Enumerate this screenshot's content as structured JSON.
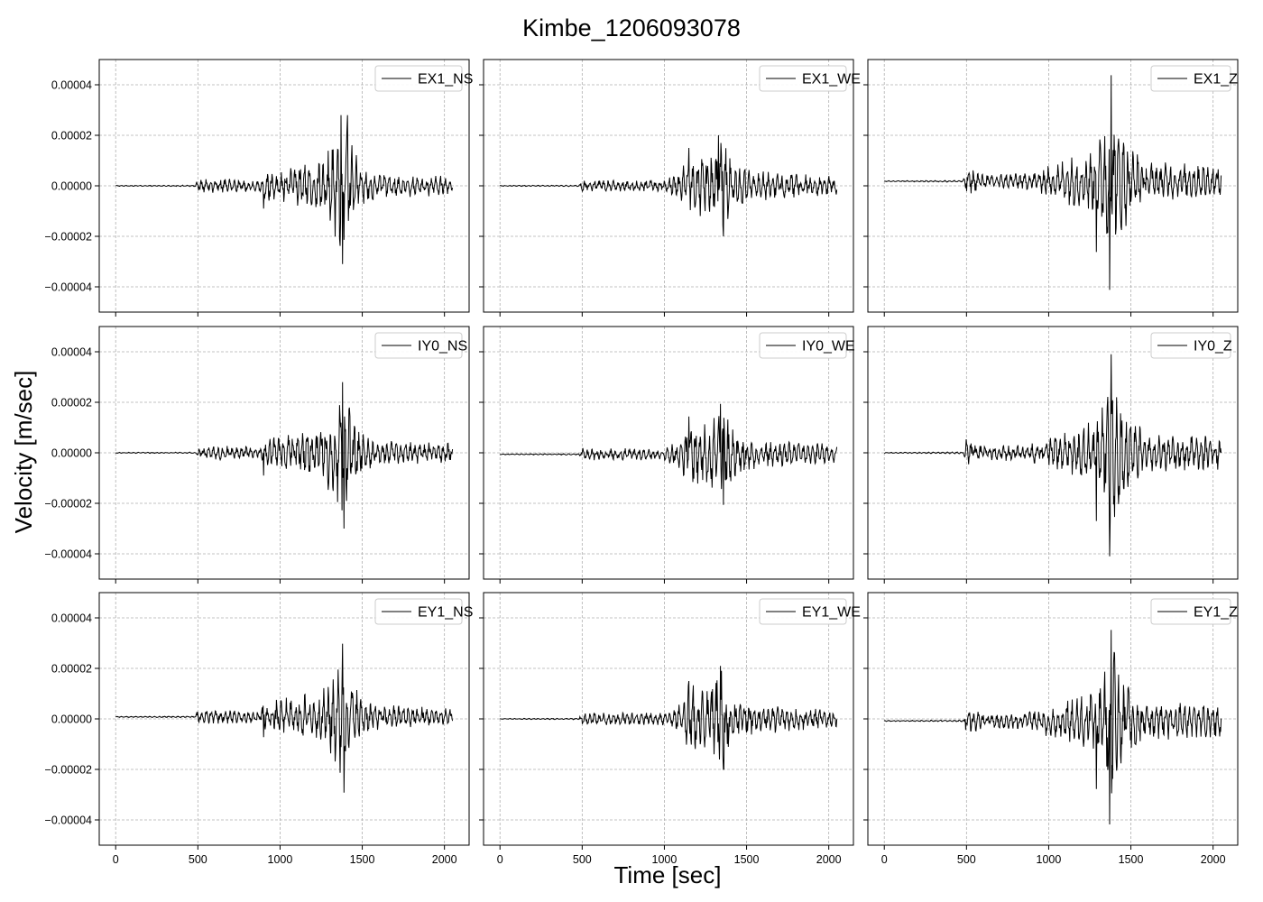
{
  "figure": {
    "title": "Kimbe_1206093078",
    "xlabel": "Time [sec]",
    "ylabel": "Velocity [m/sec]"
  },
  "chart_data": {
    "type": "line",
    "layout": {
      "rows": 3,
      "cols": 3,
      "sharex": true,
      "sharey": true
    },
    "xlim": [
      -100,
      2150
    ],
    "ylim": [
      -5e-05,
      5e-05
    ],
    "xticks": [
      0,
      500,
      1000,
      1500,
      2000
    ],
    "xtick_labels": [
      "0",
      "500",
      "1000",
      "1500",
      "2000"
    ],
    "yticks": [
      4e-05,
      2e-05,
      0.0,
      -2e-05,
      -4e-05
    ],
    "ytick_labels": [
      "0.00004",
      "0.00002",
      "0.00000",
      "−0.00002",
      "−0.00004"
    ],
    "grid": true,
    "legend_position": "top-right",
    "line_color": "#000000",
    "panels": [
      {
        "name": "EX1_NS",
        "baseline": 0.0,
        "env": [
          [
            0,
            2e-07
          ],
          [
            480,
            3e-07
          ],
          [
            500,
            3e-06
          ],
          [
            880,
            2.5e-06
          ],
          [
            900,
            6e-06
          ],
          [
            1250,
            1.1e-05
          ],
          [
            1330,
            2e-05
          ],
          [
            1380,
            3.1e-05
          ],
          [
            1420,
            2e-05
          ],
          [
            1500,
            8e-06
          ],
          [
            1600,
            5e-06
          ],
          [
            2050,
            4e-06
          ]
        ],
        "peaks": [
          [
            900,
            -9e-06
          ],
          [
            1380,
            -3.1e-05
          ],
          [
            1370,
            2.8e-05
          ],
          [
            1410,
            2.8e-05
          ]
        ]
      },
      {
        "name": "EX1_WE",
        "baseline": 0.0,
        "env": [
          [
            0,
            2e-07
          ],
          [
            480,
            3e-07
          ],
          [
            500,
            2.5e-06
          ],
          [
            1000,
            2.5e-06
          ],
          [
            1100,
            6e-06
          ],
          [
            1150,
            1.4e-05
          ],
          [
            1250,
            1.3e-05
          ],
          [
            1330,
            1.9e-05
          ],
          [
            1360,
            2e-05
          ],
          [
            1420,
            1.1e-05
          ],
          [
            1550,
            6e-06
          ],
          [
            2050,
            4e-06
          ]
        ],
        "peaks": [
          [
            1150,
            1.5e-05
          ],
          [
            1330,
            2e-05
          ],
          [
            1360,
            -2e-05
          ]
        ]
      },
      {
        "name": "EX1_Z",
        "baseline": 1.8e-06,
        "env": [
          [
            0,
            2e-07
          ],
          [
            480,
            4e-07
          ],
          [
            500,
            6e-06
          ],
          [
            600,
            3e-06
          ],
          [
            870,
            3.5e-06
          ],
          [
            900,
            4e-06
          ],
          [
            1300,
            1.4e-05
          ],
          [
            1350,
            3e-05
          ],
          [
            1380,
            4.2e-05
          ],
          [
            1420,
            2.5e-05
          ],
          [
            1500,
            1.4e-05
          ],
          [
            1600,
            8e-06
          ],
          [
            2050,
            7e-06
          ]
        ],
        "peaks": [
          [
            1380,
            4.2e-05
          ],
          [
            1370,
            -4.3e-05
          ],
          [
            1290,
            -2.8e-05
          ]
        ]
      },
      {
        "name": "IY0_NS",
        "baseline": 0.0,
        "env": [
          [
            0,
            2e-07
          ],
          [
            480,
            3e-07
          ],
          [
            500,
            3e-06
          ],
          [
            880,
            2.5e-06
          ],
          [
            900,
            6e-06
          ],
          [
            1250,
            1.1e-05
          ],
          [
            1330,
            2e-05
          ],
          [
            1380,
            2.8e-05
          ],
          [
            1420,
            2e-05
          ],
          [
            1500,
            8e-06
          ],
          [
            1600,
            5e-06
          ],
          [
            2050,
            4e-06
          ]
        ],
        "peaks": [
          [
            900,
            -9e-06
          ],
          [
            1390,
            -3e-05
          ],
          [
            1380,
            2.8e-05
          ]
        ]
      },
      {
        "name": "IY0_WE",
        "baseline": -6e-07,
        "env": [
          [
            0,
            2e-07
          ],
          [
            480,
            3e-07
          ],
          [
            500,
            2.5e-06
          ],
          [
            1000,
            2.5e-06
          ],
          [
            1100,
            6e-06
          ],
          [
            1150,
            1.4e-05
          ],
          [
            1250,
            1.3e-05
          ],
          [
            1330,
            1.9e-05
          ],
          [
            1360,
            2e-05
          ],
          [
            1420,
            1.1e-05
          ],
          [
            1550,
            6e-06
          ],
          [
            2050,
            4e-06
          ]
        ],
        "peaks": [
          [
            1150,
            1.5e-05
          ],
          [
            1340,
            2e-05
          ],
          [
            1360,
            -2e-05
          ]
        ]
      },
      {
        "name": "IY0_Z",
        "baseline": 0.0,
        "env": [
          [
            0,
            2e-07
          ],
          [
            480,
            4e-07
          ],
          [
            500,
            6e-06
          ],
          [
            600,
            3e-06
          ],
          [
            870,
            3.5e-06
          ],
          [
            900,
            4e-06
          ],
          [
            1300,
            1.4e-05
          ],
          [
            1350,
            2.8e-05
          ],
          [
            1380,
            3.9e-05
          ],
          [
            1420,
            2.4e-05
          ],
          [
            1500,
            1.4e-05
          ],
          [
            1600,
            8e-06
          ],
          [
            2050,
            7e-06
          ]
        ],
        "peaks": [
          [
            1380,
            3.9e-05
          ],
          [
            1370,
            -4.1e-05
          ],
          [
            1290,
            -2.7e-05
          ]
        ]
      },
      {
        "name": "EY1_NS",
        "baseline": 8e-07,
        "env": [
          [
            0,
            2e-07
          ],
          [
            480,
            3e-07
          ],
          [
            500,
            3e-06
          ],
          [
            880,
            2.5e-06
          ],
          [
            900,
            6e-06
          ],
          [
            1250,
            1.1e-05
          ],
          [
            1330,
            2e-05
          ],
          [
            1380,
            2.9e-05
          ],
          [
            1420,
            2e-05
          ],
          [
            1500,
            8e-06
          ],
          [
            1600,
            5e-06
          ],
          [
            2050,
            4e-06
          ]
        ],
        "peaks": [
          [
            900,
            -8e-06
          ],
          [
            1390,
            -3e-05
          ],
          [
            1380,
            2.9e-05
          ]
        ]
      },
      {
        "name": "EY1_WE",
        "baseline": 0.0,
        "env": [
          [
            0,
            2e-07
          ],
          [
            480,
            3e-07
          ],
          [
            500,
            2.5e-06
          ],
          [
            1000,
            2.5e-06
          ],
          [
            1100,
            6e-06
          ],
          [
            1150,
            1.4e-05
          ],
          [
            1250,
            1.3e-05
          ],
          [
            1330,
            1.9e-05
          ],
          [
            1360,
            2.1e-05
          ],
          [
            1420,
            1.1e-05
          ],
          [
            1550,
            6e-06
          ],
          [
            2050,
            4e-06
          ]
        ],
        "peaks": [
          [
            1150,
            1.5e-05
          ],
          [
            1340,
            2.1e-05
          ],
          [
            1360,
            -2e-05
          ]
        ]
      },
      {
        "name": "EY1_Z",
        "baseline": -8e-07,
        "env": [
          [
            0,
            2e-07
          ],
          [
            480,
            4e-07
          ],
          [
            500,
            6e-06
          ],
          [
            600,
            3e-06
          ],
          [
            870,
            3.5e-06
          ],
          [
            900,
            4e-06
          ],
          [
            1300,
            1.4e-05
          ],
          [
            1350,
            2.7e-05
          ],
          [
            1380,
            3.6e-05
          ],
          [
            1420,
            2.3e-05
          ],
          [
            1500,
            1.4e-05
          ],
          [
            1600,
            8e-06
          ],
          [
            2050,
            7e-06
          ]
        ],
        "peaks": [
          [
            1380,
            3.6e-05
          ],
          [
            1370,
            -4.1e-05
          ],
          [
            1290,
            -2.7e-05
          ]
        ]
      }
    ]
  }
}
